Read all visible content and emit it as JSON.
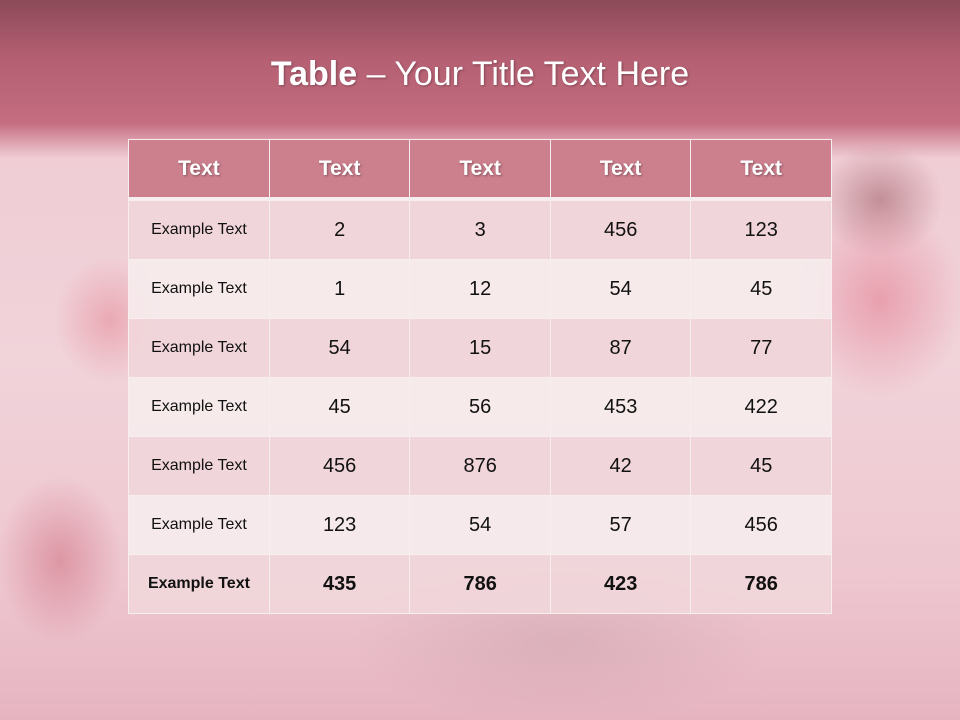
{
  "title": {
    "bold": "Table",
    "rest": " – Your Title Text Here"
  },
  "table": {
    "headers": [
      "Text",
      "Text",
      "Text",
      "Text",
      "Text"
    ],
    "rows": [
      [
        "Example Text",
        "2",
        "3",
        "456",
        "123"
      ],
      [
        "Example Text",
        "1",
        "12",
        "54",
        "45"
      ],
      [
        "Example Text",
        "54",
        "15",
        "87",
        "77"
      ],
      [
        "Example Text",
        "45",
        "56",
        "453",
        "422"
      ],
      [
        "Example Text",
        "456",
        "876",
        "42",
        "45"
      ],
      [
        "Example Text",
        "123",
        "54",
        "57",
        "456"
      ],
      [
        "Example Text",
        "435",
        "786",
        "423",
        "786"
      ]
    ]
  }
}
